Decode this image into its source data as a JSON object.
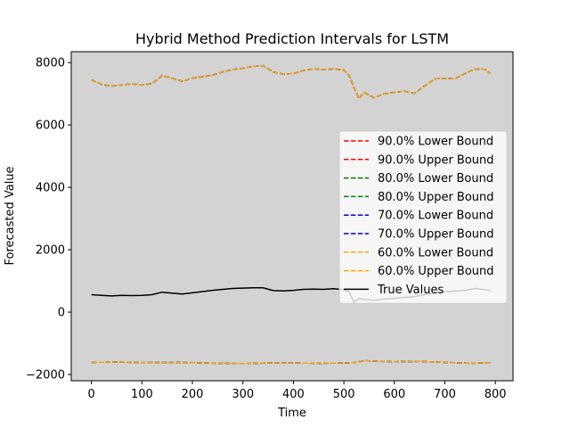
{
  "chart_data": {
    "type": "line",
    "title": "Hybrid Method Prediction Intervals for LSTM",
    "xlabel": "Time",
    "ylabel": "Forecasted Value",
    "xlim": [
      -40,
      835
    ],
    "ylim": [
      -2200,
      8350
    ],
    "xticks": [
      0,
      100,
      200,
      300,
      400,
      500,
      600,
      700,
      800
    ],
    "yticks": [
      -2000,
      0,
      2000,
      4000,
      6000,
      8000
    ],
    "grid": false,
    "legend_position": "center-right",
    "background": "#d3d3d3",
    "upper_x": [
      0,
      20,
      40,
      60,
      80,
      100,
      120,
      140,
      160,
      180,
      200,
      220,
      240,
      260,
      280,
      300,
      320,
      340,
      360,
      380,
      400,
      420,
      440,
      460,
      480,
      500,
      510,
      520,
      530,
      540,
      550,
      560,
      580,
      600,
      620,
      640,
      660,
      680,
      700,
      720,
      740,
      760,
      780,
      790
    ],
    "upper_y": [
      7450,
      7300,
      7250,
      7280,
      7320,
      7280,
      7330,
      7580,
      7500,
      7400,
      7500,
      7550,
      7600,
      7700,
      7780,
      7820,
      7880,
      7900,
      7700,
      7630,
      7650,
      7750,
      7800,
      7780,
      7800,
      7760,
      7600,
      7200,
      6850,
      7050,
      6950,
      6880,
      7000,
      7050,
      7080,
      7020,
      7250,
      7480,
      7500,
      7480,
      7650,
      7800,
      7780,
      7650
    ],
    "lower_x": [
      0,
      50,
      100,
      150,
      200,
      250,
      300,
      350,
      400,
      450,
      500,
      520,
      540,
      560,
      600,
      650,
      700,
      750,
      790
    ],
    "lower_y": [
      -1610,
      -1600,
      -1620,
      -1610,
      -1620,
      -1640,
      -1650,
      -1630,
      -1630,
      -1640,
      -1630,
      -1620,
      -1560,
      -1570,
      -1590,
      -1580,
      -1610,
      -1640,
      -1620
    ],
    "true_x": [
      0,
      20,
      40,
      60,
      80,
      100,
      120,
      140,
      160,
      180,
      200,
      220,
      240,
      260,
      280,
      300,
      320,
      340,
      360,
      380,
      400,
      420,
      440,
      460,
      480,
      500,
      510,
      520,
      530,
      540,
      560,
      580,
      600,
      620,
      640,
      660,
      680,
      700,
      720,
      740,
      760,
      780,
      790
    ],
    "true_y": [
      560,
      540,
      520,
      540,
      530,
      540,
      560,
      640,
      610,
      580,
      620,
      660,
      700,
      730,
      760,
      770,
      780,
      780,
      690,
      680,
      700,
      730,
      740,
      730,
      750,
      720,
      660,
      320,
      440,
      410,
      380,
      420,
      440,
      470,
      500,
      560,
      620,
      650,
      680,
      700,
      760,
      720,
      700
    ],
    "series": [
      {
        "name": "90.0% Lower Bound",
        "color": "#ff0000",
        "style": "dashed"
      },
      {
        "name": "90.0% Upper Bound",
        "color": "#ff0000",
        "style": "dashed"
      },
      {
        "name": "80.0% Lower Bound",
        "color": "#008000",
        "style": "dashed"
      },
      {
        "name": "80.0% Upper Bound",
        "color": "#008000",
        "style": "dashed"
      },
      {
        "name": "70.0% Lower Bound",
        "color": "#0000cd",
        "style": "dashed"
      },
      {
        "name": "70.0% Upper Bound",
        "color": "#0000cd",
        "style": "dashed"
      },
      {
        "name": "60.0% Lower Bound",
        "color": "#ffa500",
        "style": "dashed"
      },
      {
        "name": "60.0% Upper Bound",
        "color": "#ffa500",
        "style": "dashed"
      },
      {
        "name": "True Values",
        "color": "#000000",
        "style": "solid"
      }
    ]
  }
}
